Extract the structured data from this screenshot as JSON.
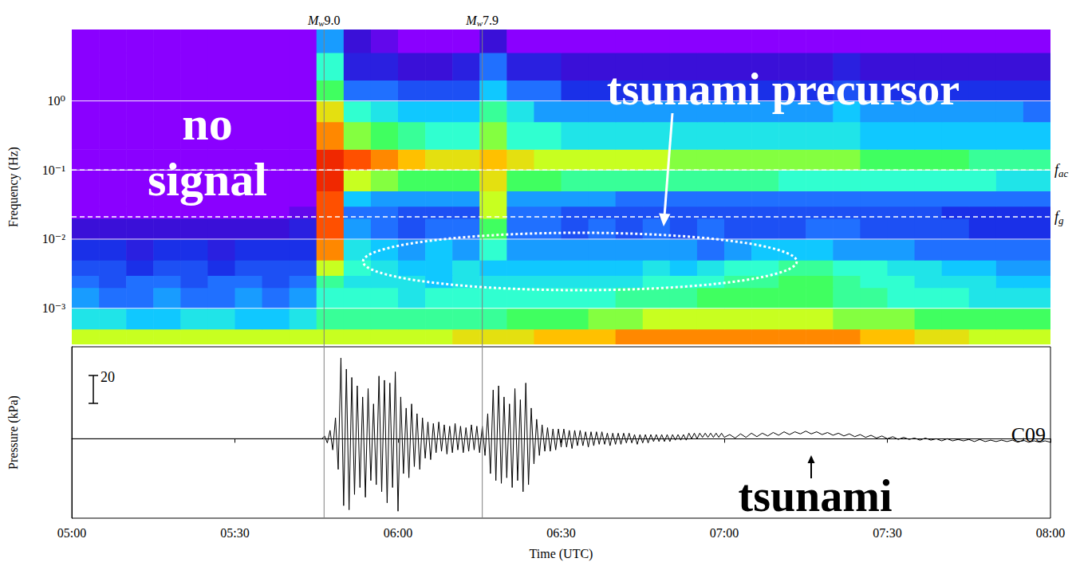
{
  "chart_data": [
    {
      "type": "heatmap",
      "ylabel": "Frequency (Hz)",
      "log": "y",
      "xlim": [
        300,
        480
      ],
      "ylim": [
        0.0003,
        10.8
      ],
      "yticks": [
        {
          "value": 0.001,
          "label": "10⁻³"
        },
        {
          "value": 0.01,
          "label": "10⁻²"
        },
        {
          "value": 0.1,
          "label": "10⁻¹"
        },
        {
          "value": 1,
          "label": "10⁰"
        }
      ],
      "tick_labels": "y",
      "grid": true,
      "zlim": [
        0,
        10
      ],
      "time_edges": [
        300,
        305,
        310,
        315,
        320,
        325,
        330,
        335,
        340,
        345,
        350,
        355,
        360,
        365,
        370,
        375,
        380,
        385,
        390,
        395,
        400,
        405,
        410,
        415,
        420,
        425,
        430,
        435,
        440,
        445,
        450,
        455,
        460,
        465,
        470,
        475,
        480
      ],
      "frequency_edges": [
        0.0003,
        0.0005,
        0.001,
        0.002,
        0.003,
        0.005,
        0.01,
        0.02,
        0.03,
        0.05,
        0.1,
        0.2,
        0.5,
        1,
        2,
        5,
        10.8
      ],
      "cells": [
        [
          7,
          7,
          7,
          7,
          7,
          7,
          7,
          7,
          7,
          7,
          7,
          7,
          7,
          7,
          7.5,
          7.5,
          7.5,
          8,
          8,
          8,
          8.5,
          8.5,
          8.5,
          8.5,
          8.5,
          8.5,
          8.5,
          8.5,
          8.5,
          8,
          8,
          7.5,
          7.5,
          7,
          7,
          7
        ],
        [
          4.5,
          4.5,
          4,
          4,
          4.5,
          4.5,
          4,
          4,
          4.5,
          5.5,
          5.5,
          5.5,
          5.5,
          5.5,
          5.5,
          5.5,
          6,
          6,
          6,
          6.5,
          6.5,
          7,
          7,
          7,
          7,
          7,
          7,
          7,
          6.5,
          6.5,
          6.5,
          6,
          6,
          6,
          6,
          6
        ],
        [
          3.5,
          3,
          3,
          3.5,
          3,
          3,
          3.5,
          3,
          3.5,
          5,
          5,
          5,
          4.5,
          5,
          5,
          5,
          5,
          5,
          5,
          5,
          5.5,
          5.5,
          5.5,
          6,
          6,
          6,
          6,
          6,
          5.5,
          5.5,
          5,
          5,
          5,
          4.5,
          4.5,
          4.5
        ],
        [
          3,
          2.5,
          3,
          3,
          2.5,
          3,
          3,
          2.5,
          3,
          5.5,
          4.5,
          4.5,
          4.5,
          4,
          4.5,
          4.5,
          4.5,
          4.5,
          4.5,
          4.5,
          4.5,
          5,
          5,
          5,
          5.5,
          5.5,
          6,
          6,
          5.5,
          5,
          5,
          4.5,
          4.5,
          4.5,
          4,
          4
        ],
        [
          2.5,
          2.5,
          2,
          2.5,
          2.5,
          2,
          2.5,
          2.5,
          2.5,
          7,
          5,
          4.5,
          4,
          4,
          4.5,
          4,
          4,
          4,
          4,
          4,
          4,
          4.5,
          4,
          4.5,
          5,
          5,
          5.5,
          5.5,
          5,
          5,
          4.5,
          4.5,
          4,
          4,
          3.5,
          3.5
        ],
        [
          2,
          2,
          1.5,
          2,
          2,
          1.5,
          2,
          2,
          2,
          8.5,
          4.5,
          4,
          3.5,
          4,
          3.5,
          5,
          3.5,
          3.5,
          3.5,
          3.5,
          3.5,
          3.5,
          3.5,
          3,
          3.5,
          4,
          4,
          4,
          3.5,
          3.5,
          3.5,
          3,
          3,
          3,
          3,
          3
        ],
        [
          1,
          1,
          1,
          1,
          1,
          1,
          1,
          1,
          1.5,
          9,
          3.5,
          3,
          2.5,
          3,
          3,
          6,
          3,
          3,
          2.5,
          3,
          2.5,
          3,
          2.5,
          3,
          2.5,
          2.5,
          2.5,
          3,
          3,
          2.5,
          2.5,
          2.5,
          2.5,
          2,
          2,
          2
        ],
        [
          0,
          0,
          0,
          0,
          0,
          0,
          0,
          0,
          0.5,
          9,
          3,
          3,
          2.5,
          2.5,
          2.5,
          7,
          3,
          3,
          2.5,
          2.5,
          2.5,
          2.5,
          2.5,
          2.5,
          2.5,
          2.5,
          2.5,
          2.5,
          2.5,
          2.5,
          2.5,
          2.5,
          2,
          2,
          2,
          2
        ],
        [
          0,
          0,
          0,
          0,
          0,
          0,
          0,
          0,
          0,
          9,
          4,
          3.5,
          3.5,
          3.5,
          3.5,
          7,
          3.5,
          3.5,
          3.5,
          3.5,
          3,
          3,
          3,
          3,
          3,
          3,
          3,
          3,
          3,
          3,
          3,
          3,
          3,
          3,
          3,
          3
        ],
        [
          0,
          0,
          0,
          0,
          0,
          0,
          0,
          0,
          0,
          9.5,
          7,
          6.5,
          6,
          6,
          6,
          7.5,
          6,
          6,
          5.5,
          5.5,
          5.5,
          5.5,
          5.5,
          5.5,
          5.5,
          5.5,
          5,
          5,
          5,
          5,
          5,
          5,
          5,
          5,
          4.5,
          4.5
        ],
        [
          0,
          0,
          0,
          0,
          0,
          0,
          0,
          0,
          0,
          9.5,
          9,
          8.5,
          8,
          7.5,
          7.5,
          8,
          7.5,
          7,
          7,
          7,
          7,
          7,
          6.5,
          6.5,
          6.5,
          6.5,
          6.5,
          6.5,
          6.5,
          6,
          6,
          6,
          6,
          5.5,
          5.5,
          5.5
        ],
        [
          0,
          0,
          0,
          0,
          0,
          0,
          0,
          0,
          0,
          8.5,
          6.5,
          6,
          5.5,
          5,
          5,
          6.5,
          5,
          5,
          4.5,
          4.5,
          4.5,
          4.5,
          4.5,
          4.5,
          4.5,
          4.5,
          4.5,
          4.5,
          4.5,
          4,
          4,
          4,
          4,
          4,
          4,
          4
        ],
        [
          0,
          0,
          0,
          0,
          0,
          0,
          0,
          0,
          0,
          7.5,
          5,
          4.5,
          4,
          4,
          4,
          5.5,
          4.5,
          3.5,
          3.5,
          3.5,
          3.5,
          3.5,
          3.5,
          3.5,
          3.5,
          3.5,
          3.5,
          3.5,
          4,
          3.5,
          3.5,
          3.5,
          3.5,
          3.5,
          3.5,
          3
        ],
        [
          0,
          0,
          0,
          0,
          0,
          0,
          0,
          0,
          0,
          6,
          3,
          3,
          2.5,
          2.5,
          2.5,
          4,
          3,
          3,
          2,
          2,
          2,
          2,
          2,
          2,
          2,
          2,
          2,
          2,
          2.5,
          2,
          2,
          2,
          2,
          2,
          2,
          2
        ],
        [
          0,
          0,
          0,
          0,
          0,
          0,
          0,
          0,
          0,
          5,
          1.5,
          1.5,
          1,
          1,
          1.5,
          3,
          1.5,
          1.5,
          1,
          1,
          1,
          1,
          1,
          1,
          1,
          1,
          1,
          1,
          1.5,
          1,
          1,
          1,
          1,
          1,
          1,
          1
        ],
        [
          0,
          0,
          0,
          0,
          0,
          0,
          0,
          0,
          0,
          3.5,
          1,
          0.5,
          0,
          0,
          0,
          1,
          0,
          0,
          0,
          0,
          0,
          0,
          0,
          0,
          0,
          0,
          0,
          0,
          0,
          0,
          0,
          0,
          0,
          0,
          0,
          0
        ]
      ],
      "events": [
        {
          "label": "Mw9.0",
          "x": 346.4
        },
        {
          "label": "Mw7.9",
          "x": 375.5
        }
      ],
      "reference_lines": [
        {
          "label": "fac",
          "y": 0.1,
          "line_style": "dashed"
        },
        {
          "label": "fg",
          "y": 0.021,
          "line_style": "dashed"
        }
      ],
      "annotations": [
        {
          "text": "no signal"
        },
        {
          "text": "tsunami precursor"
        }
      ]
    },
    {
      "type": "line",
      "xlabel": "Time (UTC)",
      "ylabel": "Pressure (kPa)",
      "xlim": [
        300,
        480
      ],
      "ylim": [
        -57,
        66
      ],
      "xticks": [
        {
          "value": 300,
          "label": "05:00"
        },
        {
          "value": 330,
          "label": "05:30"
        },
        {
          "value": 360,
          "label": "06:00"
        },
        {
          "value": 390,
          "label": "06:30"
        },
        {
          "value": 420,
          "label": "07:00"
        },
        {
          "value": 450,
          "label": "07:30"
        },
        {
          "value": 480,
          "label": "08:00"
        }
      ],
      "tick_labels": "x",
      "grid": false,
      "color": "#000000",
      "scale_bar": 20,
      "x": [
        300,
        346,
        346.5,
        347,
        347.5,
        348,
        348.5,
        349,
        349.5,
        350,
        350.5,
        351,
        351.5,
        352,
        352.5,
        353,
        353.5,
        354,
        354.5,
        355,
        355.5,
        356,
        356.5,
        357,
        357.5,
        358,
        358.5,
        359,
        359.5,
        360,
        360.5,
        361,
        361.5,
        362,
        362.5,
        363,
        363.5,
        364,
        364.5,
        365,
        365.5,
        366,
        366.5,
        367,
        367.5,
        368,
        368.5,
        369,
        369.5,
        370,
        370.5,
        371,
        371.5,
        372,
        372.5,
        373,
        373.5,
        374,
        374.5,
        375,
        375.5,
        376,
        376.5,
        377,
        377.5,
        378,
        378.5,
        379,
        379.5,
        380,
        380.5,
        381,
        381.5,
        382,
        382.5,
        383,
        383.5,
        384,
        384.5,
        385,
        385.5,
        386,
        386.5,
        387,
        387.5,
        388,
        388.5,
        389,
        389.5,
        390,
        390.5,
        391,
        391.5,
        392,
        392.5,
        393,
        393.5,
        394,
        394.5,
        395,
        395.5,
        396,
        396.5,
        397,
        397.5,
        398,
        398.5,
        399,
        399.5,
        400,
        400.5,
        401,
        401.5,
        402,
        402.5,
        403,
        403.5,
        404,
        404.5,
        405,
        405.5,
        406,
        406.5,
        407,
        407.5,
        408,
        408.5,
        409,
        409.5,
        410,
        410.5,
        411,
        411.5,
        412,
        412.5,
        413,
        413.5,
        414,
        414.5,
        415,
        415.5,
        416,
        416.5,
        417,
        417.5,
        418,
        418.5,
        419,
        419.5,
        420,
        421,
        422,
        423,
        424,
        425,
        426,
        427,
        428,
        429,
        430,
        431,
        432,
        433,
        434,
        435,
        436,
        437,
        438,
        439,
        440,
        441,
        442,
        443,
        444,
        445,
        446,
        447,
        448,
        449,
        450,
        451,
        452,
        453,
        454,
        455,
        456,
        457,
        458,
        459,
        460,
        461,
        462,
        463,
        464,
        465,
        466,
        467,
        468,
        469,
        470,
        471,
        472,
        473,
        474,
        475,
        476,
        477,
        478,
        479,
        480
      ],
      "values": [
        0,
        0,
        2,
        -3,
        6,
        -8,
        15,
        -22,
        58,
        -48,
        50,
        -51,
        44,
        -40,
        38,
        -35,
        30,
        -42,
        36,
        -30,
        25,
        -33,
        45,
        -38,
        42,
        -46,
        40,
        -35,
        48,
        -52,
        30,
        -25,
        22,
        -28,
        25,
        -20,
        18,
        -22,
        15,
        -14,
        12,
        -15,
        11,
        -10,
        12,
        -9,
        10,
        -11,
        9,
        -10,
        11,
        -8,
        9,
        -10,
        8,
        -9,
        10,
        -8,
        9,
        -10,
        9,
        -12,
        18,
        -25,
        35,
        -30,
        38,
        -32,
        30,
        -28,
        25,
        -35,
        36,
        -30,
        28,
        -38,
        40,
        -33,
        22,
        -18,
        14,
        -12,
        10,
        -9,
        8,
        -9,
        7,
        -8,
        7,
        -6,
        7,
        -6,
        6,
        -7,
        6,
        -5,
        6,
        -5,
        5,
        -6,
        5,
        -5,
        5,
        -4,
        5,
        -4,
        4,
        -5,
        4,
        -4,
        4,
        -4,
        4,
        -3,
        4,
        -3,
        3,
        -4,
        3,
        -3,
        3,
        -3,
        3,
        -2,
        3,
        -2,
        3,
        -2,
        3,
        -2,
        3,
        -1,
        3,
        -1,
        3,
        -1,
        4,
        0,
        4,
        0,
        4,
        1,
        4,
        1,
        4,
        1,
        4,
        1,
        4,
        1,
        3,
        0.5,
        3.5,
        1,
        4,
        1.5,
        4,
        2,
        4.5,
        2.5,
        5,
        3,
        5,
        3.5,
        5.5,
        3.5,
        5,
        3,
        4.5,
        2.5,
        4,
        2,
        3.5,
        1.5,
        3,
        1,
        2.5,
        0.5,
        2,
        0,
        1.5,
        -0.5,
        1,
        -0.5,
        0.5,
        -1,
        0.5,
        -1,
        0,
        -1.5,
        0,
        -1.5,
        -0.5,
        -1.5,
        -0.5,
        -2,
        -0.5,
        -2,
        -1,
        -2,
        -1,
        -2,
        -1,
        -2.5,
        -1,
        -2.5,
        -1.5,
        -2.5,
        -1.5,
        -2.5
      ],
      "annotations": [
        {
          "text": "tsunami"
        },
        {
          "text": "C09"
        }
      ]
    }
  ]
}
